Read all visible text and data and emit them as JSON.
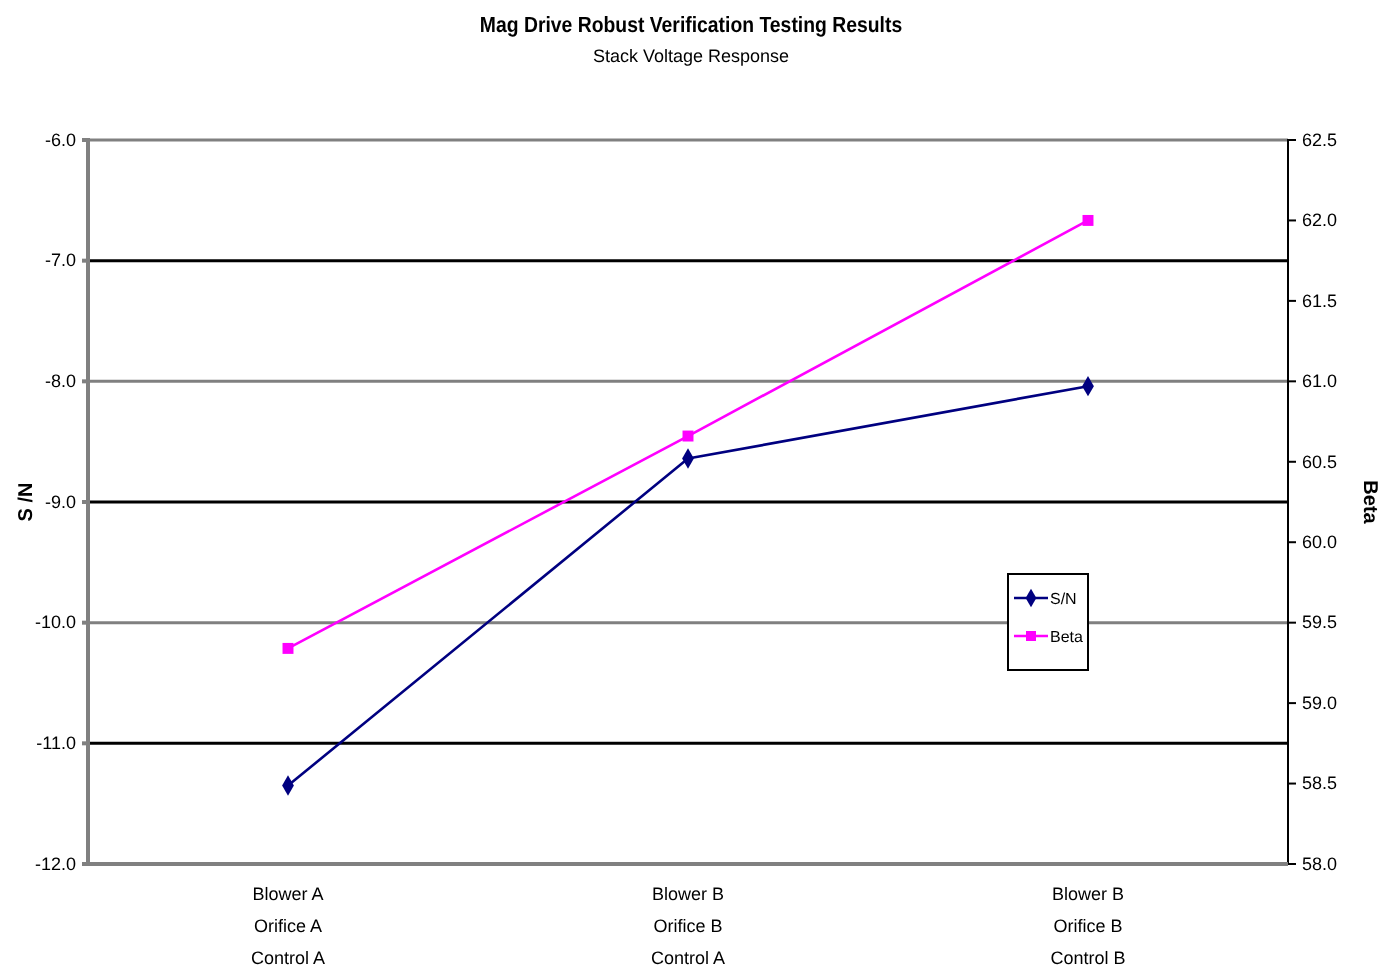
{
  "chart_data": {
    "type": "line",
    "title": "Mag Drive Robust Verification Testing Results",
    "subtitle": "Stack Voltage Response",
    "ylabel": "S /N",
    "y2label": "Beta",
    "categories": [
      "Blower A\nOrifice A\nControl A",
      "Blower B\nOrifice B\nControl A",
      "Blower B\nOrifice B\nControl B"
    ],
    "series": [
      {
        "name": "S/N",
        "color": "#000080",
        "marker": "diamond",
        "values": [
          -11.35,
          -8.64,
          -8.04
        ]
      },
      {
        "name": "Beta",
        "color": "#ff00ff",
        "marker": "square",
        "axis": "y2",
        "values": [
          59.34,
          60.66,
          62.0
        ]
      }
    ],
    "ylim": [
      -12,
      -6
    ],
    "yticks": [
      {
        "value": -12,
        "label": "-12.0"
      },
      {
        "value": -11,
        "label": "-11.0"
      },
      {
        "value": -10,
        "label": "-10.0"
      },
      {
        "value": -9,
        "label": "-9.0"
      },
      {
        "value": -8,
        "label": "-8.0"
      },
      {
        "value": -7,
        "label": "-7.0"
      },
      {
        "value": -6,
        "label": "-6.0"
      }
    ],
    "y2lim": [
      58,
      62.5
    ],
    "y2ticks": [
      {
        "value": 58,
        "label": "58.0"
      },
      58.5,
      {
        "value": 59,
        "label": "59.0"
      },
      59.5,
      {
        "value": 60,
        "label": "60.0"
      },
      60.5,
      {
        "value": 61,
        "label": "61.0"
      },
      61.5,
      {
        "value": 62,
        "label": "62.0"
      },
      62.5
    ],
    "grid": "y",
    "legend": "right"
  }
}
